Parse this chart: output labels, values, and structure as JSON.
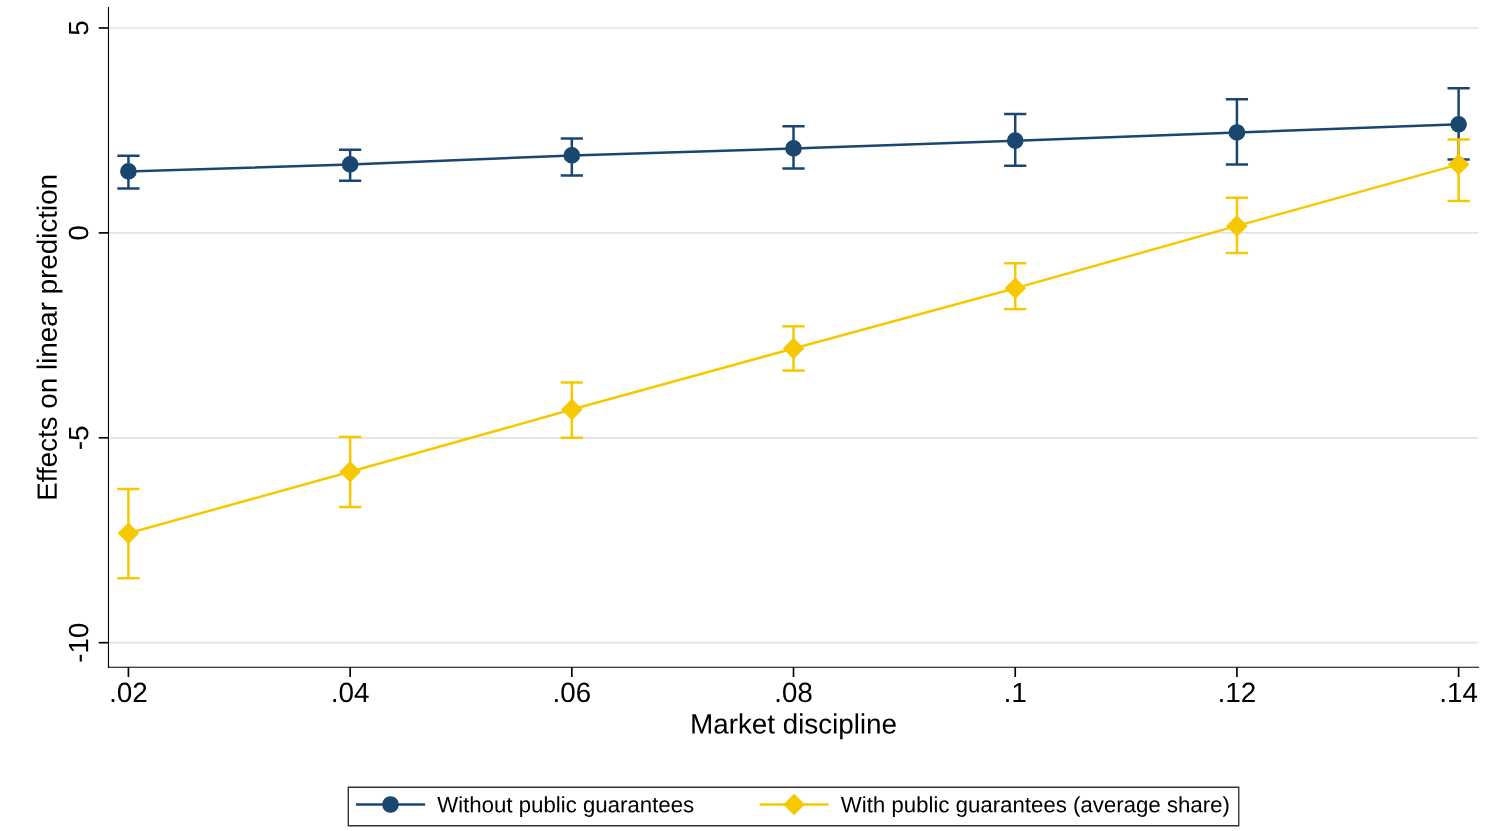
{
  "chart_data": {
    "type": "line",
    "xlabel": "Market discipline",
    "ylabel": "Effects on linear prediction",
    "x": [
      0.02,
      0.04,
      0.06,
      0.08,
      0.1,
      0.12,
      0.14
    ],
    "series": [
      {
        "name": "Without public guarantees",
        "color": "#1a476f",
        "marker": "circle",
        "values": [
          1.5,
          1.67,
          1.89,
          2.06,
          2.25,
          2.45,
          2.65
        ],
        "errors": [
          [
            1.08,
            1.88
          ],
          [
            1.27,
            2.03
          ],
          [
            1.4,
            2.3
          ],
          [
            1.57,
            2.6
          ],
          [
            1.64,
            2.9
          ],
          [
            1.67,
            3.26
          ],
          [
            1.79,
            3.53
          ]
        ]
      },
      {
        "name": "With public guarantees (average share)",
        "color": "#f5c800",
        "marker": "diamond",
        "values": [
          -7.33,
          -5.83,
          -4.31,
          -2.82,
          -1.35,
          0.17,
          1.67
        ],
        "errors": [
          [
            -8.43,
            -6.25
          ],
          [
            -6.69,
            -4.98
          ],
          [
            -5.0,
            -3.65
          ],
          [
            -3.36,
            -2.28
          ],
          [
            -1.86,
            -0.74
          ],
          [
            -0.49,
            0.86
          ],
          [
            0.78,
            2.28
          ]
        ]
      }
    ],
    "xlim": [
      0.0182,
      0.1418
    ],
    "ylim": [
      -10.6,
      5.5
    ],
    "xticks": [
      {
        "value": 0.02,
        "label": ".02"
      },
      {
        "value": 0.04,
        "label": ".04"
      },
      {
        "value": 0.06,
        "label": ".06"
      },
      {
        "value": 0.08,
        "label": ".08"
      },
      {
        "value": 0.1,
        "label": ".1"
      },
      {
        "value": 0.12,
        "label": ".12"
      },
      {
        "value": 0.14,
        "label": ".14"
      }
    ],
    "yticks": [
      -10,
      -5,
      0,
      5
    ],
    "grid": "y",
    "legend": "bottom",
    "line_style": "solid"
  }
}
